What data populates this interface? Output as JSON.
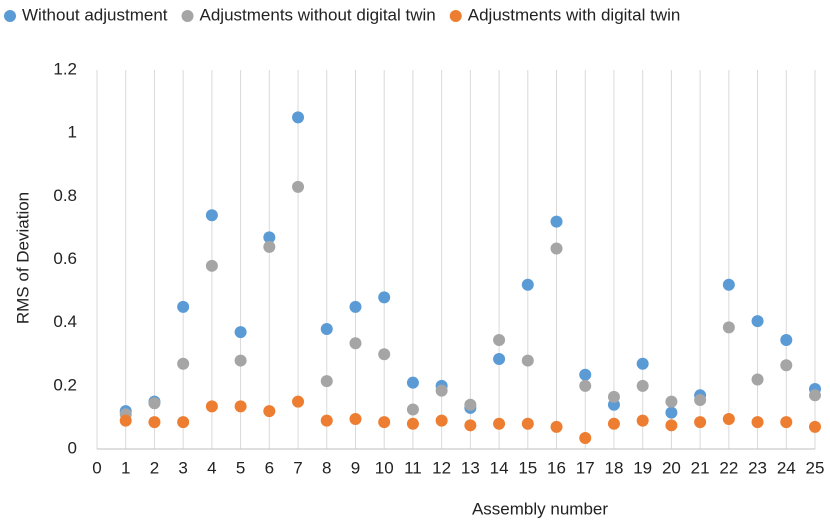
{
  "chart_data": {
    "type": "scatter",
    "xlabel": "Assembly number",
    "ylabel": "RMS of Deviation",
    "x": [
      1,
      2,
      3,
      4,
      5,
      6,
      7,
      8,
      9,
      10,
      11,
      12,
      13,
      14,
      15,
      16,
      17,
      18,
      19,
      20,
      21,
      22,
      23,
      24,
      25
    ],
    "series": [
      {
        "name": "Without adjustment",
        "color": "#5b9bd5",
        "values": [
          0.12,
          0.15,
          0.45,
          0.74,
          0.37,
          0.67,
          1.05,
          0.38,
          0.45,
          0.48,
          0.21,
          0.2,
          0.13,
          0.285,
          0.52,
          0.72,
          0.235,
          0.14,
          0.27,
          0.115,
          0.17,
          0.52,
          0.405,
          0.345,
          0.19
        ]
      },
      {
        "name": "Adjustments without digital twin",
        "color": "#a5a5a5",
        "values": [
          0.11,
          0.145,
          0.27,
          0.58,
          0.28,
          0.64,
          0.83,
          0.215,
          0.335,
          0.3,
          0.125,
          0.185,
          0.14,
          0.345,
          0.28,
          0.635,
          0.2,
          0.165,
          0.2,
          0.15,
          0.155,
          0.385,
          0.22,
          0.265,
          0.17
        ]
      },
      {
        "name": "Adjustments with digital twin",
        "color": "#ed7d31",
        "values": [
          0.09,
          0.085,
          0.085,
          0.135,
          0.135,
          0.12,
          0.15,
          0.09,
          0.095,
          0.085,
          0.08,
          0.09,
          0.075,
          0.08,
          0.08,
          0.07,
          0.035,
          0.08,
          0.09,
          0.075,
          0.085,
          0.095,
          0.085,
          0.085,
          0.07
        ]
      }
    ],
    "xlim": [
      0,
      25
    ],
    "xticks": [
      0,
      1,
      2,
      3,
      4,
      5,
      6,
      7,
      8,
      9,
      10,
      11,
      12,
      13,
      14,
      15,
      16,
      17,
      18,
      19,
      20,
      21,
      22,
      23,
      24,
      25
    ],
    "ylim": [
      0,
      1.2
    ],
    "yticks": [
      0,
      0.2,
      0.4,
      0.6,
      0.8,
      1,
      1.2
    ],
    "grid": "x",
    "legend": "top"
  }
}
